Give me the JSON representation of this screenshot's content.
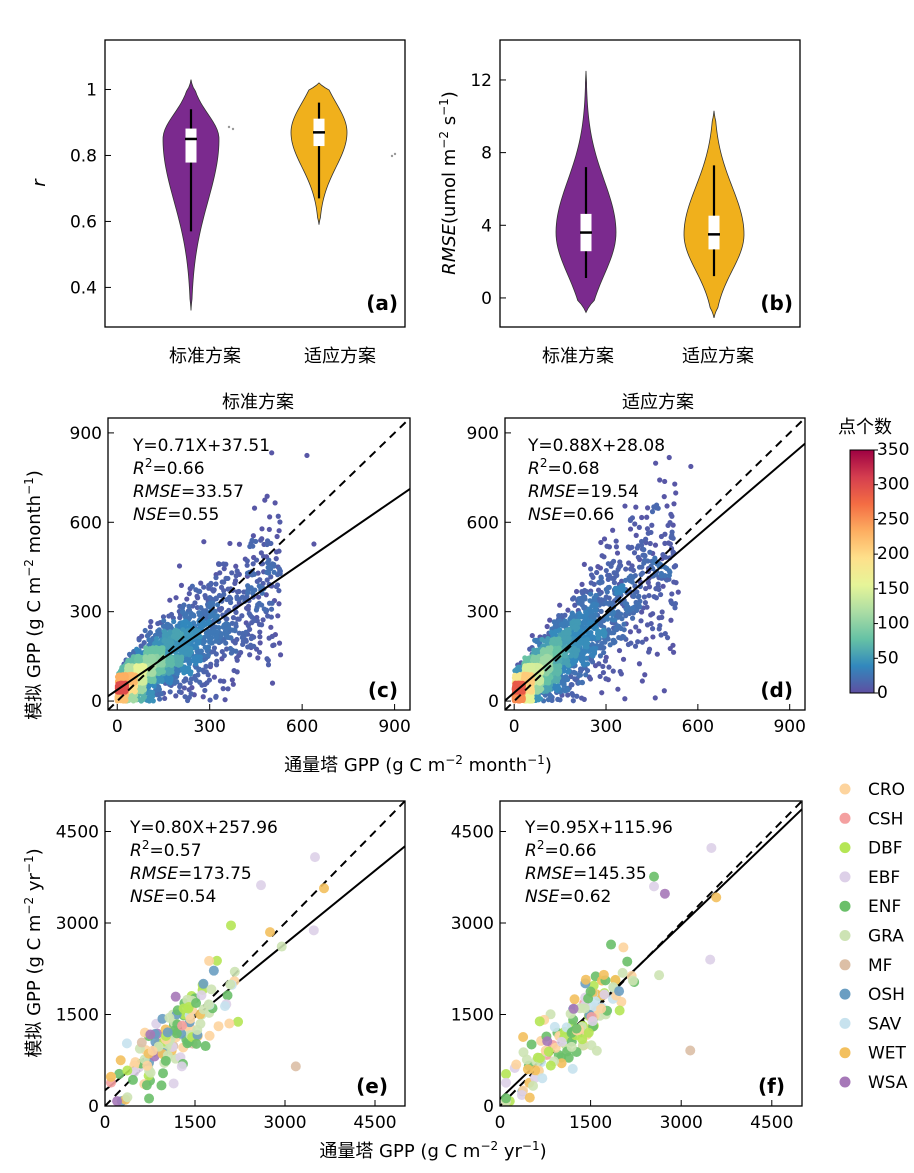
{
  "chart_data": [
    {
      "id": "a",
      "type": "violin",
      "panel_label": "(a)",
      "ylabel": "r",
      "ylim": [
        0.28,
        1.15
      ],
      "yticks": [
        0.4,
        0.6,
        0.8,
        1
      ],
      "categories": [
        "标准方案",
        "适应方案"
      ],
      "colors": [
        "#7b2a8e",
        "#f0b01c"
      ],
      "violins": [
        {
          "category": "标准方案",
          "min": 0.33,
          "max": 1.03,
          "q1": 0.78,
          "median": 0.85,
          "q3": 0.88,
          "whisker_low": 0.57,
          "whisker_high": 0.94
        },
        {
          "category": "适应方案",
          "min": 0.59,
          "max": 1.02,
          "q1": 0.83,
          "median": 0.87,
          "q3": 0.91,
          "whisker_low": 0.67,
          "whisker_high": 0.96
        }
      ]
    },
    {
      "id": "b",
      "type": "violin",
      "panel_label": "(b)",
      "ylabel_main": "RMSE",
      "ylabel_unit": "(umol m",
      "ylabel_sup1": "−2",
      "ylabel_mid": " s",
      "ylabel_sup2": "−1",
      "ylabel_end": ")",
      "ylim": [
        -1.6,
        14.2
      ],
      "yticks": [
        0,
        4,
        8,
        12
      ],
      "categories": [
        "标准方案",
        "适应方案"
      ],
      "colors": [
        "#7b2a8e",
        "#f0b01c"
      ],
      "violins": [
        {
          "category": "标准方案",
          "min": -0.8,
          "max": 12.5,
          "q1": 2.6,
          "median": 3.6,
          "q3": 4.6,
          "whisker_low": 1.1,
          "whisker_high": 7.2
        },
        {
          "category": "适应方案",
          "min": -1.1,
          "max": 10.3,
          "q1": 2.7,
          "median": 3.5,
          "q3": 4.5,
          "whisker_low": 1.2,
          "whisker_high": 7.3
        }
      ]
    },
    {
      "id": "c",
      "type": "scatter-density",
      "title": "标准方案",
      "panel_label": "(c)",
      "xlim": [
        -30,
        950
      ],
      "ylim": [
        -30,
        950
      ],
      "ticks": [
        0,
        300,
        600,
        900
      ],
      "fit": {
        "slope": 0.71,
        "intercept": 37.51
      },
      "stats": {
        "eq": "Y=0.71X+37.51",
        "r2": "=0.66",
        "rmse": "=33.57",
        "nse": "=0.55"
      }
    },
    {
      "id": "d",
      "type": "scatter-density",
      "title": "适应方案",
      "panel_label": "(d)",
      "xlim": [
        -30,
        950
      ],
      "ylim": [
        -30,
        950
      ],
      "ticks": [
        0,
        300,
        600,
        900
      ],
      "fit": {
        "slope": 0.88,
        "intercept": 28.08
      },
      "stats": {
        "eq": "Y=0.88X+28.08",
        "r2": "=0.68",
        "rmse": "=19.54",
        "nse": "=0.66"
      }
    },
    {
      "id": "e",
      "type": "scatter",
      "panel_label": "(e)",
      "xlim": [
        0,
        5000
      ],
      "ylim": [
        0,
        5000
      ],
      "ticks": [
        0,
        1500,
        3000,
        4500
      ],
      "fit": {
        "slope": 0.8,
        "intercept": 257.96
      },
      "stats": {
        "eq": "Y=0.80X+257.96",
        "r2": "=0.57",
        "rmse": "=173.75",
        "nse": "=0.54"
      }
    },
    {
      "id": "f",
      "type": "scatter",
      "panel_label": "(f)",
      "xlim": [
        0,
        5000
      ],
      "ylim": [
        0,
        5000
      ],
      "ticks": [
        0,
        1500,
        3000,
        4500
      ],
      "fit": {
        "slope": 0.95,
        "intercept": 115.96
      },
      "stats": {
        "eq": "Y=0.95X+115.96",
        "r2": "=0.66",
        "rmse": "=145.35",
        "nse": "=0.62"
      }
    }
  ],
  "labels": {
    "r2_symbol": "R",
    "r2_sup": "2",
    "rmse_symbol": "RMSE",
    "nse_symbol": "NSE",
    "monthly_x_prefix": "通量塔 GPP (g C m",
    "monthly_x_sup1": "−2",
    "monthly_x_mid": " month",
    "monthly_x_sup2": "−1",
    "monthly_x_end": ")",
    "monthly_y_prefix": "模拟 GPP (g C m",
    "monthly_y_sup1": "−2",
    "monthly_y_mid": " month",
    "monthly_y_sup2": "−1",
    "monthly_y_end": ")",
    "annual_x_prefix": "通量塔 GPP (g C m",
    "annual_x_sup1": "−2",
    "annual_x_mid": " yr",
    "annual_x_sup2": "−1",
    "annual_x_end": ")",
    "annual_y_prefix": "模拟 GPP (g C m",
    "annual_y_sup1": "−2",
    "annual_y_mid": " yr",
    "annual_y_sup2": "−1",
    "annual_y_end": ")"
  },
  "colorbar": {
    "title": "点个数",
    "min": 0,
    "max": 350,
    "ticks": [
      0,
      50,
      100,
      150,
      200,
      250,
      300,
      350
    ],
    "colors": [
      "#5e4fa2",
      "#3288bd",
      "#66c2a5",
      "#abdda4",
      "#e6f598",
      "#fee08b",
      "#fdae61",
      "#f46d43",
      "#d53e4f",
      "#9e0142"
    ]
  },
  "legend": [
    {
      "label": "CRO",
      "color": "#fdd49e"
    },
    {
      "label": "CSH",
      "color": "#f4a0a0"
    },
    {
      "label": "DBF",
      "color": "#b5e655"
    },
    {
      "label": "EBF",
      "color": "#ddd0e8"
    },
    {
      "label": "ENF",
      "color": "#6abf69"
    },
    {
      "label": "GRA",
      "color": "#cde3b4"
    },
    {
      "label": "MF",
      "color": "#dcbfa6"
    },
    {
      "label": "OSH",
      "color": "#6a9ec2"
    },
    {
      "label": "SAV",
      "color": "#c7e2ee"
    },
    {
      "label": "WET",
      "color": "#f3c05e"
    },
    {
      "label": "WSA",
      "color": "#a678b8"
    }
  ]
}
